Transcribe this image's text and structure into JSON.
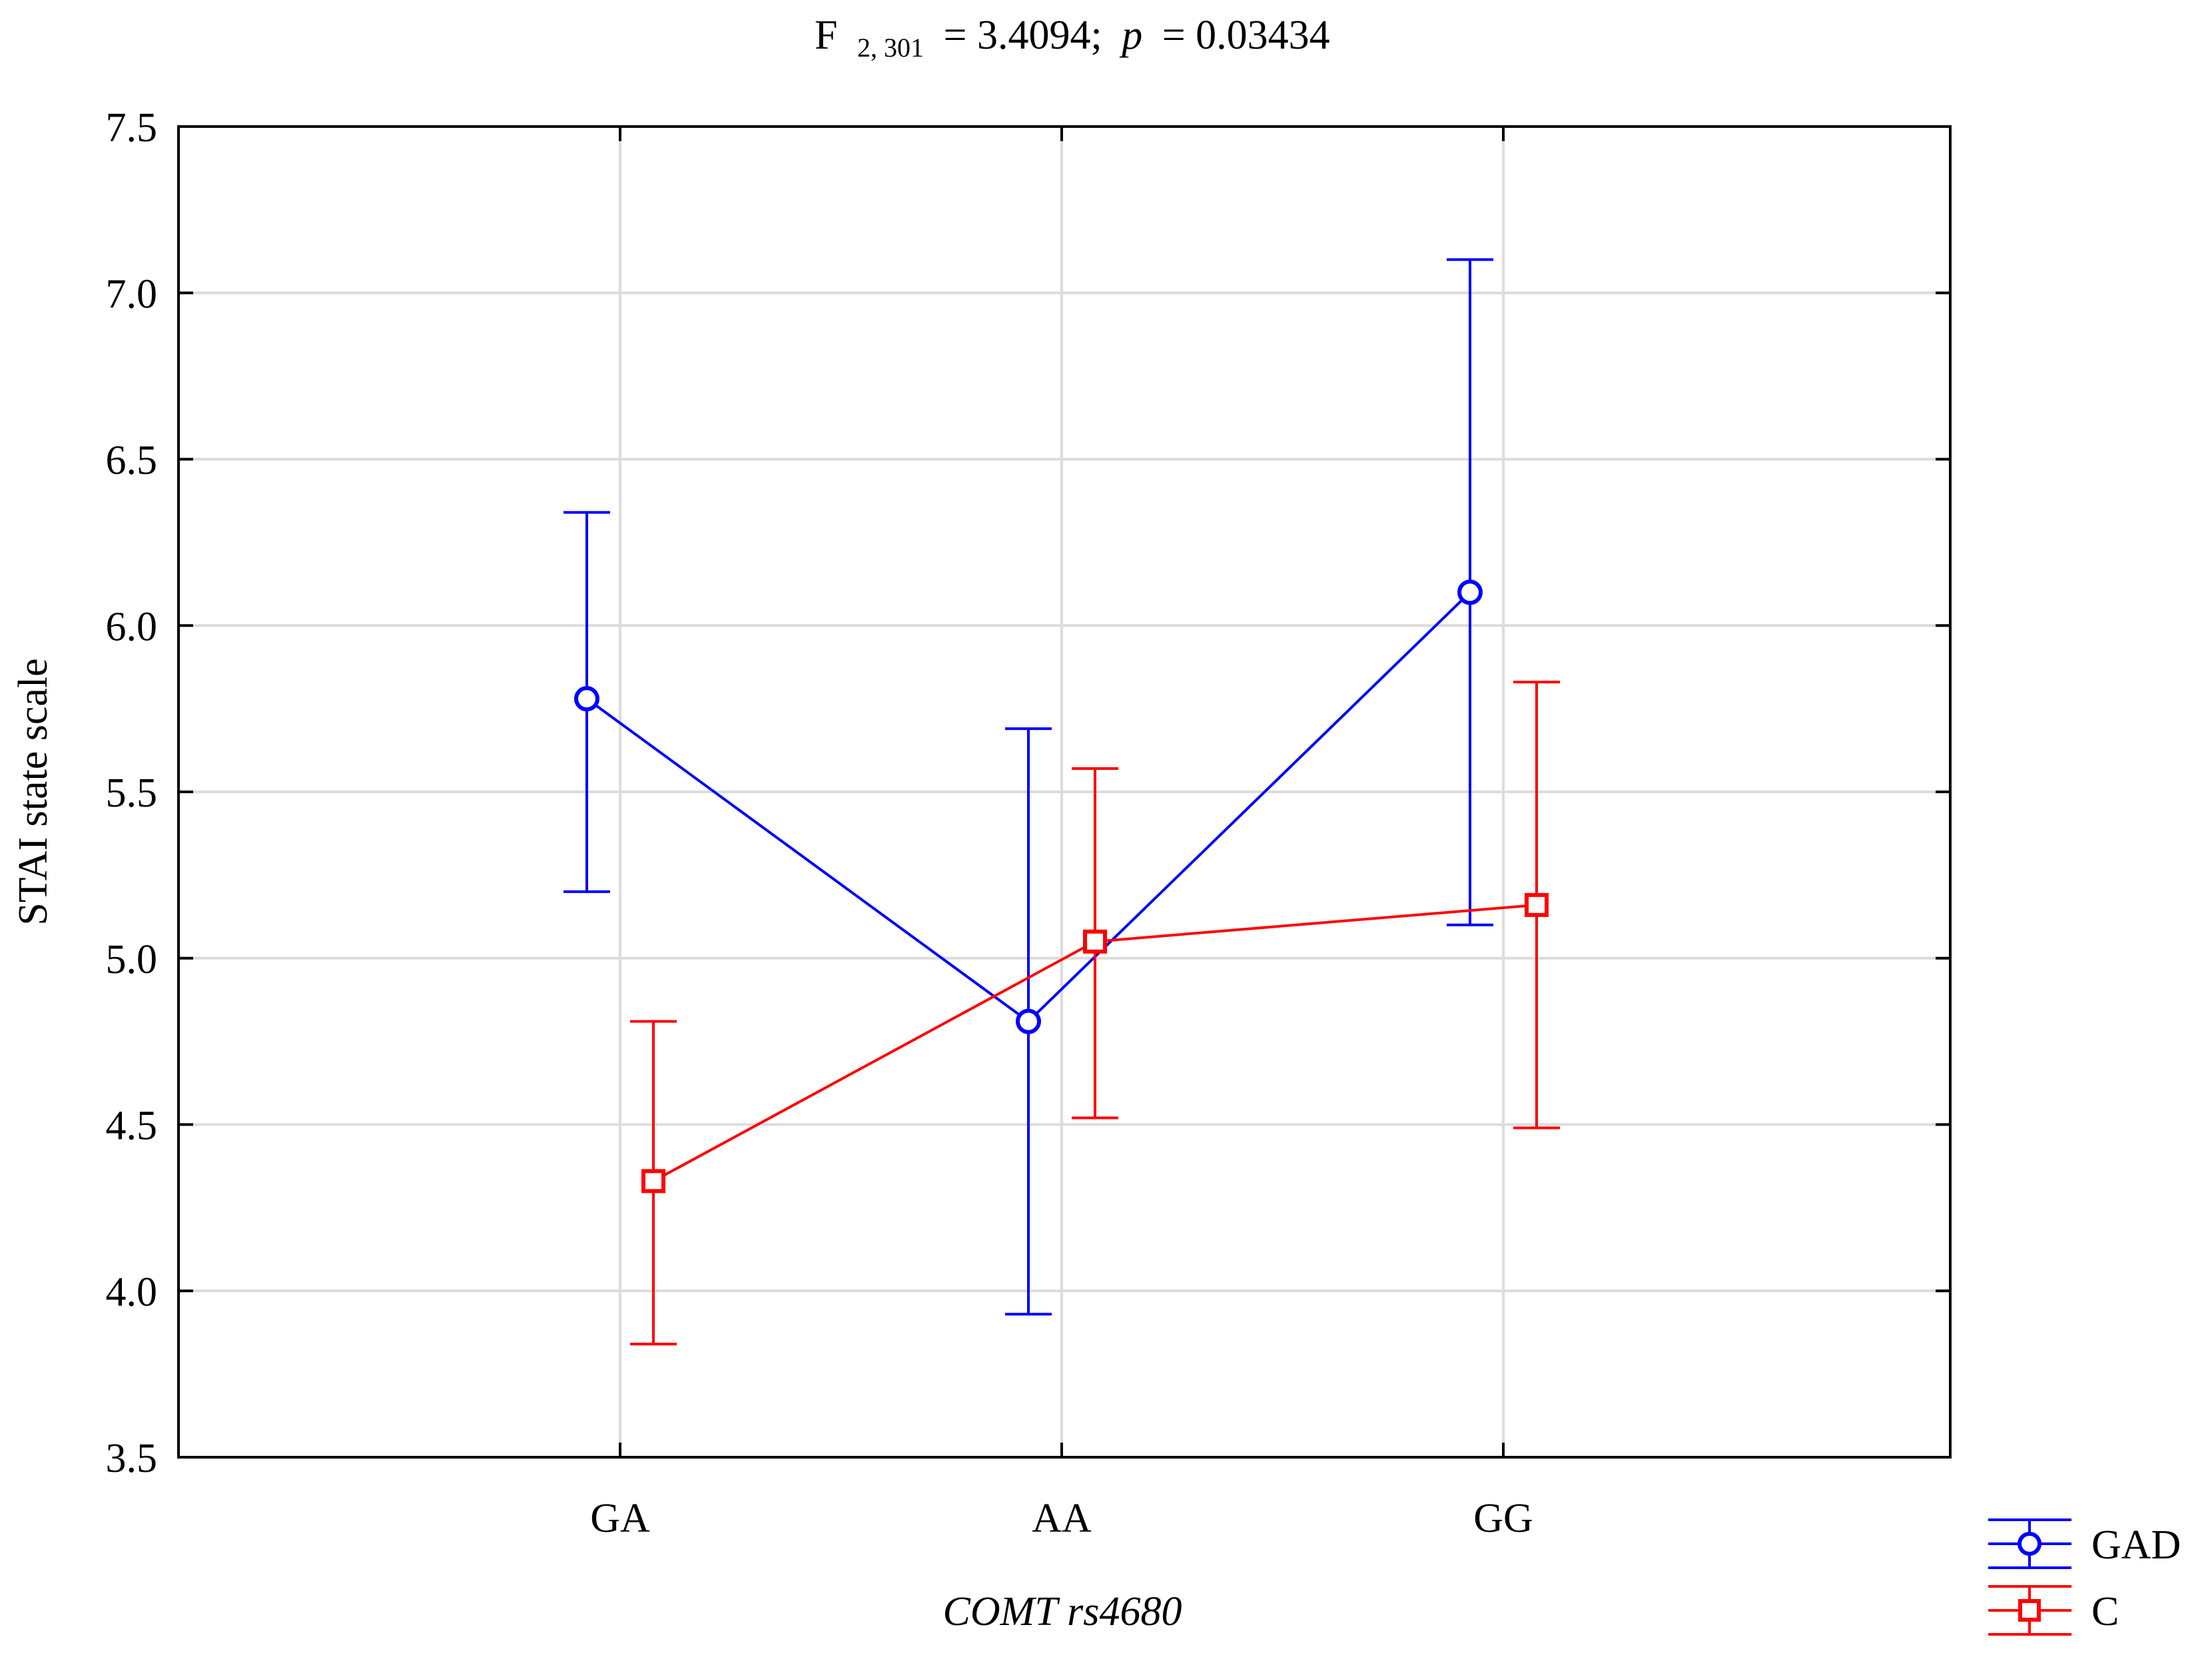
{
  "chart_data": {
    "type": "line",
    "title_prefix": "F",
    "title_df": "2, 301",
    "title_stat": "= 3.4094;",
    "title_p_symbol": "p",
    "title_p_value": "= 0.03434",
    "xlabel": "COMT rs4680",
    "ylabel": "STAI state scale",
    "categories": [
      "GA",
      "AA",
      "GG"
    ],
    "ylim": [
      3.5,
      7.5
    ],
    "yticks": [
      3.5,
      4.0,
      4.5,
      5.0,
      5.5,
      6.0,
      6.5,
      7.0,
      7.5
    ],
    "ytick_labels": [
      "3.5",
      "4.0",
      "4.5",
      "5.0",
      "5.5",
      "6.0",
      "6.5",
      "7.0",
      "7.5"
    ],
    "grid": true,
    "legend_position": "bottom-right outside",
    "series": [
      {
        "name": "GAD",
        "color": "#0000ff",
        "marker": "circle",
        "values": [
          5.78,
          4.81,
          6.1
        ],
        "lower": [
          5.2,
          3.93,
          5.1
        ],
        "upper": [
          6.34,
          5.69,
          7.1
        ]
      },
      {
        "name": "C",
        "color": "#ff0000",
        "marker": "square",
        "values": [
          4.33,
          5.05,
          5.16
        ],
        "lower": [
          3.84,
          4.52,
          4.49
        ],
        "upper": [
          4.81,
          5.57,
          5.83
        ]
      }
    ]
  }
}
